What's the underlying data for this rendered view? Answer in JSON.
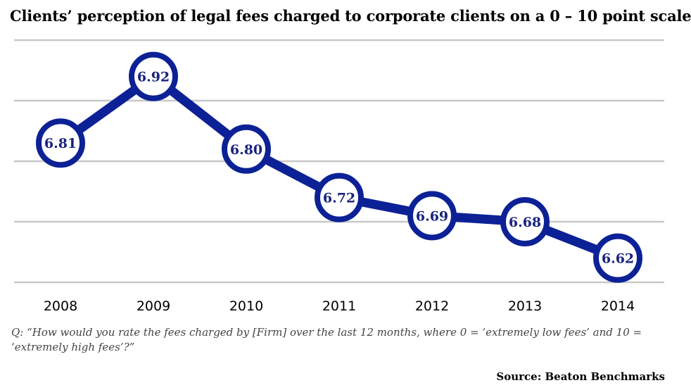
{
  "colors": {
    "series": "#0d2196",
    "marker_fill": "#ffffff",
    "grid": "#c8c8c8",
    "label": "#1a237e"
  },
  "chart_data": {
    "type": "line",
    "title": "Clients’ perception of legal fees charged  to corporate clients on a 0 – 10 point scale",
    "x": [
      "2008",
      "2009",
      "2010",
      "2011",
      "2012",
      "2013",
      "2014"
    ],
    "series": [
      {
        "values": [
          6.81,
          6.92,
          6.8,
          6.72,
          6.69,
          6.68,
          6.62
        ]
      }
    ],
    "data_labels": [
      "6.81",
      "6.92",
      "6.80",
      "6.72",
      "6.69",
      "6.68",
      "6.62"
    ],
    "ylim": [
      6.58,
      6.98
    ],
    "grid": true,
    "legend": "none",
    "xlabel": "",
    "ylabel": ""
  },
  "footnote": "Q: “How would you rate the fees charged by [Firm] over the last 12 months, where 0 = ‘extremely low fees’ and 10 = ‘extremely high fees’?”",
  "source": "Source: Beaton Benchmarks"
}
